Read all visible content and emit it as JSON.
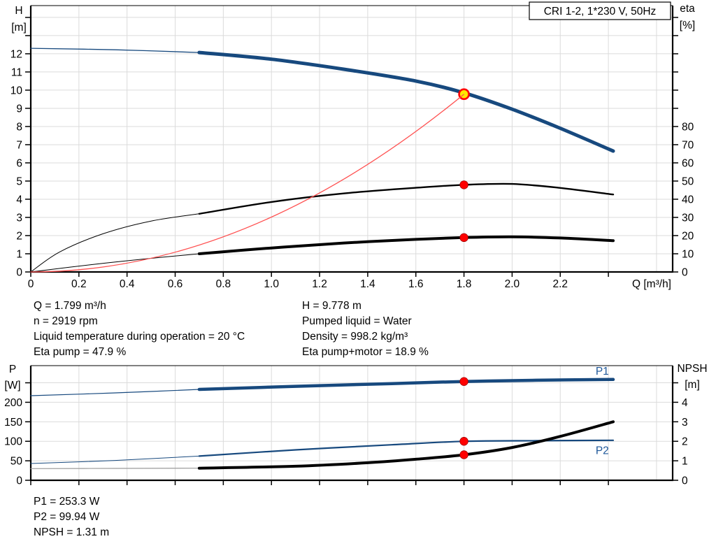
{
  "colors": {
    "curve_blue": "#17497E",
    "curve_black": "#000000",
    "system_red": "#FF5050",
    "dot_red": "#FF0000",
    "dot_red_edge": "#A00000",
    "op_yellow": "#FFE600",
    "grid": "#DBDBDB",
    "axis": "#000000",
    "label_blue": "#1E5799",
    "ext_gray": "#9A9A9A"
  },
  "info_block": {
    "left": [
      "Q = 1.799 m³/h",
      "n = 2919 rpm",
      "Liquid temperature during operation = 20 °C",
      "Eta pump = 47.9 %"
    ],
    "right": [
      "H = 9.778 m",
      "Pumped liquid = Water",
      "Density = 998.2 kg/m³",
      "Eta pump+motor = 18.9 %"
    ]
  },
  "result_block": [
    "P1 = 253.3 W",
    "P2 = 99.94 W",
    "NPSH = 1.31 m"
  ],
  "chart_data": [
    {
      "type": "line",
      "title": "CRI 1-2, 1*230 V, 50Hz",
      "x_axis": {
        "unit_label": "Q [m³/h]",
        "min": 0,
        "max": 2.667,
        "tick_step": 0.2,
        "tick_max": 2.4,
        "grid_max": 2.6,
        "labels": [
          "0",
          "0.2",
          "0.4",
          "0.6",
          "0.8",
          "1.0",
          "1.2",
          "1.4",
          "1.6",
          "1.8",
          "2.0",
          "2.2"
        ]
      },
      "y_left": {
        "label": [
          "H",
          "[m]"
        ],
        "min": 0,
        "max": 14.65,
        "tick_step": 1,
        "labeled_max": 12
      },
      "y_right": {
        "label": [
          "eta",
          "[%]"
        ],
        "min": 0,
        "max": 146.5,
        "tick_step": 10,
        "labeled_max": 80
      },
      "series": [
        {
          "name": "H-Q extrapolated",
          "slug": "qh-extension",
          "axis": "left",
          "color": "#17497E",
          "width": 1.3,
          "points": [
            [
              0,
              12.3
            ],
            [
              0.35,
              12.22
            ],
            [
              0.7,
              12.07
            ]
          ]
        },
        {
          "name": "H-Q curve",
          "slug": "qh-curve",
          "axis": "left",
          "color": "#17497E",
          "width": 5,
          "points": [
            [
              0.7,
              12.07
            ],
            [
              1.0,
              11.7
            ],
            [
              1.3,
              11.15
            ],
            [
              1.6,
              10.5
            ],
            [
              1.8,
              9.85
            ],
            [
              2.0,
              8.95
            ],
            [
              2.2,
              7.9
            ],
            [
              2.42,
              6.65
            ]
          ]
        },
        {
          "name": "Eta pump extrapolated",
          "slug": "eta-pump-extension",
          "axis": "right",
          "color": "#000000",
          "width": 1,
          "points": [
            [
              0,
              0
            ],
            [
              0.12,
              11
            ],
            [
              0.3,
              21
            ],
            [
              0.5,
              28
            ],
            [
              0.7,
              32
            ]
          ]
        },
        {
          "name": "Eta pump",
          "slug": "eta-pump-curve",
          "axis": "right",
          "color": "#000000",
          "width": 2.4,
          "points": [
            [
              0.7,
              32
            ],
            [
              1.0,
              38.5
            ],
            [
              1.3,
              43.2
            ],
            [
              1.6,
              46.3
            ],
            [
              1.8,
              47.9
            ],
            [
              2.0,
              48.4
            ],
            [
              2.2,
              46.2
            ],
            [
              2.42,
              42.6
            ]
          ]
        },
        {
          "name": "Eta pump+motor extrapolated",
          "slug": "eta-pump-motor-extension",
          "axis": "right",
          "color": "#000000",
          "width": 1,
          "points": [
            [
              0,
              0
            ],
            [
              0.25,
              4
            ],
            [
              0.5,
              7.5
            ],
            [
              0.7,
              10
            ]
          ]
        },
        {
          "name": "Eta pump+motor",
          "slug": "eta-pump-motor-curve",
          "axis": "right",
          "color": "#000000",
          "width": 4,
          "points": [
            [
              0.7,
              10
            ],
            [
              1.0,
              13.2
            ],
            [
              1.3,
              15.9
            ],
            [
              1.6,
              17.9
            ],
            [
              1.8,
              18.9
            ],
            [
              2.0,
              19.3
            ],
            [
              2.2,
              18.7
            ],
            [
              2.42,
              17.2
            ]
          ]
        },
        {
          "name": "System curve",
          "slug": "system-curve",
          "axis": "left",
          "color": "#FF5050",
          "width": 1.3,
          "parabola": [
            1.8,
            9.778
          ]
        }
      ],
      "markers": [
        {
          "kind": "operating-point",
          "axis": "left",
          "q": 1.8,
          "value": 9.778
        },
        {
          "kind": "duty-point",
          "axis": "right",
          "q": 1.8,
          "value": 47.9
        },
        {
          "kind": "duty-point",
          "axis": "right",
          "q": 1.8,
          "value": 18.9
        }
      ],
      "curve_labels": []
    },
    {
      "type": "line",
      "title": "",
      "x_axis": {
        "unit_label": "",
        "min": 0,
        "max": 2.667,
        "tick_step": 0.2,
        "tick_max": 2.4,
        "grid_max": 2.6,
        "labels": []
      },
      "y_left": {
        "label": [
          "P",
          "[W]"
        ],
        "min": 0,
        "max": 294,
        "tick_step": 50,
        "labeled_max": 200
      },
      "y_right": {
        "label": [
          "NPSH",
          "[m]"
        ],
        "min": 0,
        "max": 5.88,
        "tick_step": 1,
        "labeled_max": 4
      },
      "series": [
        {
          "name": "P1 extrapolated",
          "slug": "p1-extension",
          "axis": "left",
          "color": "#17497E",
          "width": 1.2,
          "points": [
            [
              0,
              217
            ],
            [
              0.35,
              224
            ],
            [
              0.7,
              233
            ]
          ]
        },
        {
          "name": "P1",
          "slug": "p1-curve",
          "axis": "left",
          "color": "#17497E",
          "width": 4.5,
          "points": [
            [
              0.7,
              233
            ],
            [
              1.1,
              241
            ],
            [
              1.5,
              248
            ],
            [
              1.8,
              253.3
            ],
            [
              2.1,
              256.5
            ],
            [
              2.42,
              258.5
            ]
          ]
        },
        {
          "name": "P2 extrapolated",
          "slug": "p2-extension",
          "axis": "left",
          "color": "#17497E",
          "width": 1,
          "points": [
            [
              0,
              43
            ],
            [
              0.35,
              51
            ],
            [
              0.7,
              62
            ]
          ]
        },
        {
          "name": "P2",
          "slug": "p2-curve",
          "axis": "left",
          "color": "#17497E",
          "width": 2.2,
          "points": [
            [
              0.7,
              62
            ],
            [
              1.1,
              78
            ],
            [
              1.5,
              91
            ],
            [
              1.8,
              99.94
            ],
            [
              2.1,
              101.5
            ],
            [
              2.42,
              102.5
            ]
          ]
        },
        {
          "name": "NPSH extrapolated",
          "slug": "npsh-extension",
          "axis": "right",
          "color": "#9A9A9A",
          "width": 1.2,
          "points": [
            [
              0,
              0.6
            ],
            [
              0.35,
              0.61
            ],
            [
              0.7,
              0.62
            ]
          ]
        },
        {
          "name": "NPSH",
          "slug": "npsh-curve",
          "axis": "right",
          "color": "#000000",
          "width": 4,
          "points": [
            [
              0.7,
              0.62
            ],
            [
              1.1,
              0.72
            ],
            [
              1.4,
              0.9
            ],
            [
              1.6,
              1.08
            ],
            [
              1.8,
              1.31
            ],
            [
              2.0,
              1.68
            ],
            [
              2.2,
              2.25
            ],
            [
              2.42,
              3.0
            ]
          ]
        }
      ],
      "markers": [
        {
          "kind": "duty-point",
          "axis": "left",
          "q": 1.8,
          "value": 253.3
        },
        {
          "kind": "duty-point",
          "axis": "left",
          "q": 1.8,
          "value": 99.94
        },
        {
          "kind": "duty-point",
          "axis": "right",
          "q": 1.8,
          "value": 1.31
        }
      ],
      "curve_labels": [
        {
          "text": "P1",
          "axis": "left",
          "q": 2.347,
          "value": 271
        },
        {
          "text": "P2",
          "axis": "left",
          "q": 2.347,
          "value": 67
        }
      ]
    }
  ]
}
